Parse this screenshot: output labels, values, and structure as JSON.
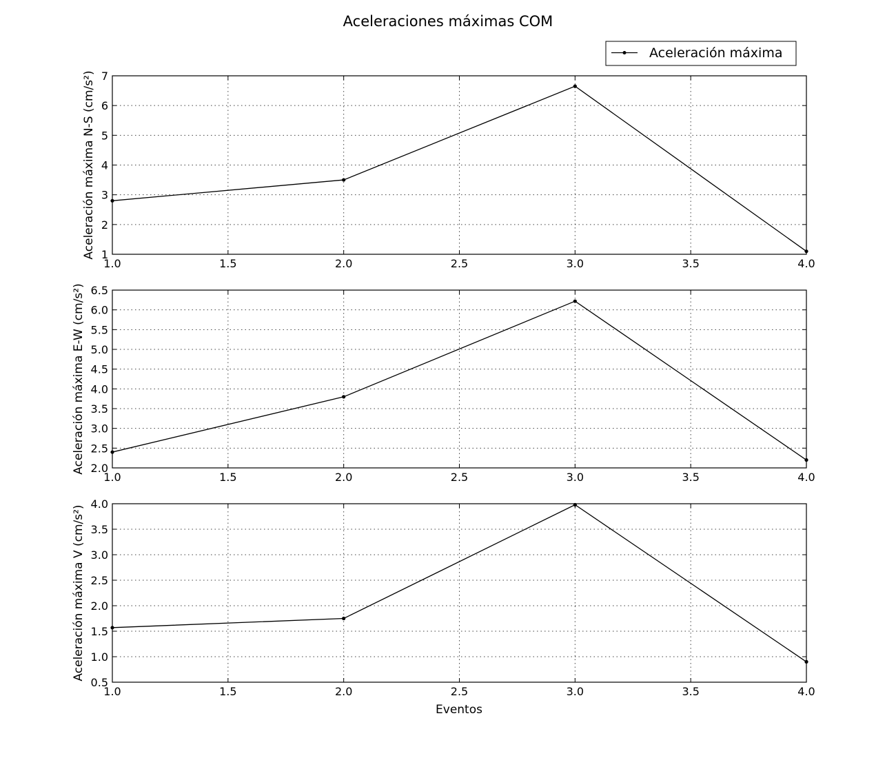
{
  "figure": {
    "title": "Aceleraciones máximas COM",
    "legend": {
      "label": "Aceleración máxima",
      "placement": "top-right"
    },
    "xlabel": "Eventos"
  },
  "chart_data": [
    {
      "type": "line",
      "ylabel": "Aceleración máxima N-S (cm/s²)",
      "x": [
        1,
        2,
        3,
        4
      ],
      "series": [
        {
          "name": "Aceleración máxima",
          "values": [
            2.8,
            3.5,
            6.65,
            1.1
          ]
        }
      ],
      "xlim": [
        1.0,
        4.0
      ],
      "ylim": [
        1,
        7
      ],
      "xticks": [
        1.0,
        1.5,
        2.0,
        2.5,
        3.0,
        3.5,
        4.0
      ],
      "xtick_labels": [
        "1.0",
        "1.5",
        "2.0",
        "2.5",
        "3.0",
        "3.5",
        "4.0"
      ],
      "yticks": [
        1,
        2,
        3,
        4,
        5,
        6,
        7
      ],
      "ytick_labels": [
        "1",
        "2",
        "3",
        "4",
        "5",
        "6",
        "7"
      ],
      "grid": true,
      "color": "#000000"
    },
    {
      "type": "line",
      "ylabel": "Aceleración máxima E-W (cm/s²)",
      "x": [
        1,
        2,
        3,
        4
      ],
      "series": [
        {
          "name": "Aceleración máxima",
          "values": [
            2.4,
            3.8,
            6.22,
            2.2
          ]
        }
      ],
      "xlim": [
        1.0,
        4.0
      ],
      "ylim": [
        2.0,
        6.5
      ],
      "xticks": [
        1.0,
        1.5,
        2.0,
        2.5,
        3.0,
        3.5,
        4.0
      ],
      "xtick_labels": [
        "1.0",
        "1.5",
        "2.0",
        "2.5",
        "3.0",
        "3.5",
        "4.0"
      ],
      "yticks": [
        2.0,
        2.5,
        3.0,
        3.5,
        4.0,
        4.5,
        5.0,
        5.5,
        6.0,
        6.5
      ],
      "ytick_labels": [
        "2.0",
        "2.5",
        "3.0",
        "3.5",
        "4.0",
        "4.5",
        "5.0",
        "5.5",
        "6.0",
        "6.5"
      ],
      "grid": true,
      "color": "#000000"
    },
    {
      "type": "line",
      "ylabel": "Aceleración máxima V (cm/s²)",
      "x": [
        1,
        2,
        3,
        4
      ],
      "series": [
        {
          "name": "Aceleración máxima",
          "values": [
            1.57,
            1.75,
            3.98,
            0.9
          ]
        }
      ],
      "xlim": [
        1.0,
        4.0
      ],
      "ylim": [
        0.5,
        4.0
      ],
      "xticks": [
        1.0,
        1.5,
        2.0,
        2.5,
        3.0,
        3.5,
        4.0
      ],
      "xtick_labels": [
        "1.0",
        "1.5",
        "2.0",
        "2.5",
        "3.0",
        "3.5",
        "4.0"
      ],
      "yticks": [
        0.5,
        1.0,
        1.5,
        2.0,
        2.5,
        3.0,
        3.5,
        4.0
      ],
      "ytick_labels": [
        "0.5",
        "1.0",
        "1.5",
        "2.0",
        "2.5",
        "3.0",
        "3.5",
        "4.0"
      ],
      "grid": true,
      "color": "#000000"
    }
  ]
}
